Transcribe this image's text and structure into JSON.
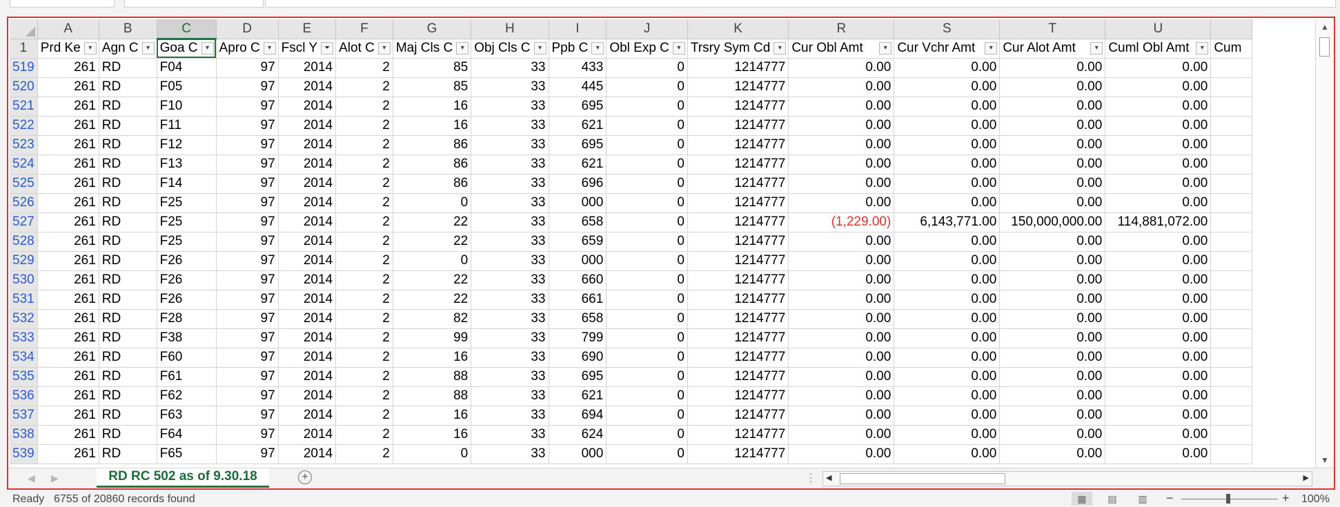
{
  "column_letters": [
    "A",
    "B",
    "C",
    "D",
    "E",
    "F",
    "G",
    "H",
    "I",
    "J",
    "K",
    "R",
    "S",
    "T",
    "U",
    ""
  ],
  "selected_column": "C",
  "header_row_number": "1",
  "headers": [
    "Prd Ke",
    "Agn C",
    "Goa C",
    "Apro C",
    "Fscl Y",
    "Alot C",
    "Maj Cls C",
    "Obj Cls C",
    "Ppb C",
    "Obl Exp C",
    "Trsry Sym Cd",
    "Cur Obl Amt",
    "Cur Vchr Amt",
    "Cur Alot Amt",
    "Cuml Obl Amt",
    "Cum"
  ],
  "filtered_column": "Fscl Y",
  "rows": [
    {
      "n": "519",
      "c": [
        "261",
        "RD",
        "F04",
        "97",
        "2014",
        "2",
        "85",
        "33",
        "433",
        "0",
        "1214777",
        "0.00",
        "0.00",
        "0.00",
        "0.00"
      ]
    },
    {
      "n": "520",
      "c": [
        "261",
        "RD",
        "F05",
        "97",
        "2014",
        "2",
        "85",
        "33",
        "445",
        "0",
        "1214777",
        "0.00",
        "0.00",
        "0.00",
        "0.00"
      ]
    },
    {
      "n": "521",
      "c": [
        "261",
        "RD",
        "F10",
        "97",
        "2014",
        "2",
        "16",
        "33",
        "695",
        "0",
        "1214777",
        "0.00",
        "0.00",
        "0.00",
        "0.00"
      ]
    },
    {
      "n": "522",
      "c": [
        "261",
        "RD",
        "F11",
        "97",
        "2014",
        "2",
        "16",
        "33",
        "621",
        "0",
        "1214777",
        "0.00",
        "0.00",
        "0.00",
        "0.00"
      ]
    },
    {
      "n": "523",
      "c": [
        "261",
        "RD",
        "F12",
        "97",
        "2014",
        "2",
        "86",
        "33",
        "695",
        "0",
        "1214777",
        "0.00",
        "0.00",
        "0.00",
        "0.00"
      ]
    },
    {
      "n": "524",
      "c": [
        "261",
        "RD",
        "F13",
        "97",
        "2014",
        "2",
        "86",
        "33",
        "621",
        "0",
        "1214777",
        "0.00",
        "0.00",
        "0.00",
        "0.00"
      ]
    },
    {
      "n": "525",
      "c": [
        "261",
        "RD",
        "F14",
        "97",
        "2014",
        "2",
        "86",
        "33",
        "696",
        "0",
        "1214777",
        "0.00",
        "0.00",
        "0.00",
        "0.00"
      ]
    },
    {
      "n": "526",
      "c": [
        "261",
        "RD",
        "F25",
        "97",
        "2014",
        "2",
        "0",
        "33",
        "000",
        "0",
        "1214777",
        "0.00",
        "0.00",
        "0.00",
        "0.00"
      ]
    },
    {
      "n": "527",
      "c": [
        "261",
        "RD",
        "F25",
        "97",
        "2014",
        "2",
        "22",
        "33",
        "658",
        "0",
        "1214777",
        "(1,229.00)",
        "6,143,771.00",
        "150,000,000.00",
        "114,881,072.00"
      ]
    },
    {
      "n": "528",
      "c": [
        "261",
        "RD",
        "F25",
        "97",
        "2014",
        "2",
        "22",
        "33",
        "659",
        "0",
        "1214777",
        "0.00",
        "0.00",
        "0.00",
        "0.00"
      ]
    },
    {
      "n": "529",
      "c": [
        "261",
        "RD",
        "F26",
        "97",
        "2014",
        "2",
        "0",
        "33",
        "000",
        "0",
        "1214777",
        "0.00",
        "0.00",
        "0.00",
        "0.00"
      ]
    },
    {
      "n": "530",
      "c": [
        "261",
        "RD",
        "F26",
        "97",
        "2014",
        "2",
        "22",
        "33",
        "660",
        "0",
        "1214777",
        "0.00",
        "0.00",
        "0.00",
        "0.00"
      ]
    },
    {
      "n": "531",
      "c": [
        "261",
        "RD",
        "F26",
        "97",
        "2014",
        "2",
        "22",
        "33",
        "661",
        "0",
        "1214777",
        "0.00",
        "0.00",
        "0.00",
        "0.00"
      ]
    },
    {
      "n": "532",
      "c": [
        "261",
        "RD",
        "F28",
        "97",
        "2014",
        "2",
        "82",
        "33",
        "658",
        "0",
        "1214777",
        "0.00",
        "0.00",
        "0.00",
        "0.00"
      ]
    },
    {
      "n": "533",
      "c": [
        "261",
        "RD",
        "F38",
        "97",
        "2014",
        "2",
        "99",
        "33",
        "799",
        "0",
        "1214777",
        "0.00",
        "0.00",
        "0.00",
        "0.00"
      ]
    },
    {
      "n": "534",
      "c": [
        "261",
        "RD",
        "F60",
        "97",
        "2014",
        "2",
        "16",
        "33",
        "690",
        "0",
        "1214777",
        "0.00",
        "0.00",
        "0.00",
        "0.00"
      ]
    },
    {
      "n": "535",
      "c": [
        "261",
        "RD",
        "F61",
        "97",
        "2014",
        "2",
        "88",
        "33",
        "695",
        "0",
        "1214777",
        "0.00",
        "0.00",
        "0.00",
        "0.00"
      ]
    },
    {
      "n": "536",
      "c": [
        "261",
        "RD",
        "F62",
        "97",
        "2014",
        "2",
        "88",
        "33",
        "621",
        "0",
        "1214777",
        "0.00",
        "0.00",
        "0.00",
        "0.00"
      ]
    },
    {
      "n": "537",
      "c": [
        "261",
        "RD",
        "F63",
        "97",
        "2014",
        "2",
        "16",
        "33",
        "694",
        "0",
        "1214777",
        "0.00",
        "0.00",
        "0.00",
        "0.00"
      ]
    },
    {
      "n": "538",
      "c": [
        "261",
        "RD",
        "F64",
        "97",
        "2014",
        "2",
        "16",
        "33",
        "624",
        "0",
        "1214777",
        "0.00",
        "0.00",
        "0.00",
        "0.00"
      ]
    },
    {
      "n": "539",
      "c": [
        "261",
        "RD",
        "F65",
        "97",
        "2014",
        "2",
        "0",
        "33",
        "000",
        "0",
        "1214777",
        "0.00",
        "0.00",
        "0.00",
        "0.00"
      ]
    }
  ],
  "sheet_tab": "RD RC 502 as of 9.30.18",
  "status": {
    "ready": "Ready",
    "records": "6755 of 20860 records found",
    "zoom": "100%"
  },
  "colors": {
    "accent": "#217346",
    "negative": "#e0312b",
    "row_number": "#2a5bd7"
  }
}
